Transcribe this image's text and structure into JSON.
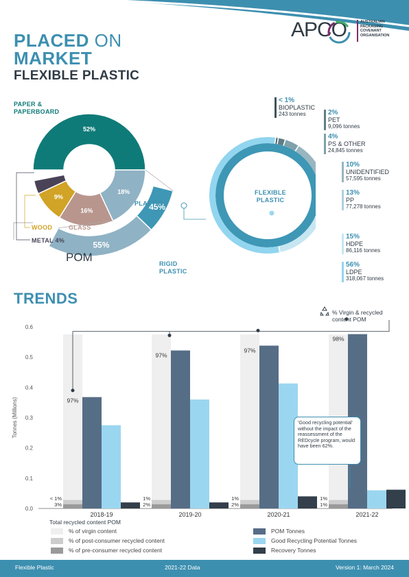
{
  "header": {
    "title_line1_bold": "PLACED",
    "title_line1_thin": "ON",
    "title_line2": "MARKET",
    "subtitle": "FLEXIBLE PLASTIC",
    "logo_text": "APCO",
    "logo_sub": [
      "AUSTRALIAN",
      "PACKAGING",
      "COVENANT",
      "ORGANISATION"
    ]
  },
  "pom": {
    "heading": "POM",
    "segments": [
      {
        "label": "PAPER & PAPERBOARD",
        "pct_label": "52%",
        "value": 52,
        "color": "#0f7b78"
      },
      {
        "label": "PLASTIC",
        "pct_label": "18%",
        "value": 18,
        "color": "#8fb2c4"
      },
      {
        "label": "GLASS",
        "pct_label": "16%",
        "value": 16,
        "color": "#b8968e"
      },
      {
        "label": "WOOD",
        "pct_label": "9%",
        "value": 9,
        "color": "#d1a326"
      },
      {
        "label": "METAL 4%",
        "pct_label": "",
        "value": 4,
        "color": "#4a4358"
      }
    ],
    "plastic_split": [
      {
        "label": "",
        "pct_label": "45%",
        "value": 45,
        "color": "#3e97b5"
      },
      {
        "label": "RIGID PLASTIC",
        "pct_label": "55%",
        "value": 55,
        "color": "#8fb2c4"
      }
    ]
  },
  "flexible": {
    "center_label": "FLEXIBLE PLASTIC",
    "types": [
      {
        "pct": "< 1%",
        "name": "BIOPLASTIC",
        "tonnes": "243 tonnes",
        "value": 0.7,
        "color": "#3f555c"
      },
      {
        "pct": "2%",
        "name": "PET",
        "tonnes": "9,096 tonnes",
        "value": 2,
        "color": "#5f7d86"
      },
      {
        "pct": "4%",
        "name": "PS & OTHER",
        "tonnes": "24,845 tonnes",
        "value": 4,
        "color": "#7fa1aa"
      },
      {
        "pct": "10%",
        "name": "UNIDENTIFIED",
        "tonnes": "57,595 tonnes",
        "value": 10,
        "color": "#97b6c0"
      },
      {
        "pct": "13%",
        "name": "PP",
        "tonnes": "77,278 tonnes",
        "value": 13,
        "color": "#add0dc"
      },
      {
        "pct": "15%",
        "name": "HDPE",
        "tonnes": "86,116 tonnes",
        "value": 15,
        "color": "#c6e6f1"
      },
      {
        "pct": "56%",
        "name": "LDPE",
        "tonnes": "318,067 tonnes",
        "value": 56,
        "color": "#92d5ef"
      }
    ]
  },
  "trends": {
    "heading": "TRENDS",
    "recycle_note": "% Virgin & recycled content POM",
    "callout": "'Good recycling potential' without the impact of the reassessment of the REDcycle program, would have been 62%.",
    "total_recycled_label": "Total recycled content POM"
  },
  "chart_data": {
    "type": "bar",
    "categories": [
      "2018-19",
      "2019-20",
      "2020-21",
      "2021-22"
    ],
    "ylabel": "Tonnes (Millions)",
    "ylim": [
      0,
      0.6
    ],
    "yticks": [
      0.0,
      0.1,
      0.2,
      0.3,
      0.4,
      0.5,
      0.6
    ],
    "series": [
      {
        "name": "POM Tonnes",
        "color": "#566d86",
        "values": [
          0.368,
          0.522,
          0.538,
          0.576
        ]
      },
      {
        "name": "Good Recycling Potential Tonnes",
        "color": "#9bd6f0",
        "values": [
          0.275,
          0.36,
          0.413,
          0.06
        ]
      },
      {
        "name": "Recovery Tonnes",
        "color": "#333f4a",
        "values": [
          0.02,
          0.02,
          0.04,
          0.062
        ]
      }
    ],
    "content_share": {
      "legend": [
        {
          "name": "% of virgin content",
          "color": "#efefef"
        },
        {
          "name": "% of post-consumer recycled content",
          "color": "#cdcdcd"
        },
        {
          "name": "% of pre-consumer recycled content",
          "color": "#9a9a9a"
        }
      ],
      "virgin_labels": [
        "97%",
        "97%",
        "97%",
        "98%"
      ],
      "recycled_labels": [
        [
          "< 1%",
          "3%"
        ],
        [
          "1%",
          "2%"
        ],
        [
          "1%",
          "2%"
        ],
        [
          "1%",
          "1%"
        ]
      ]
    }
  },
  "footer": {
    "left": "Flexible Plastic",
    "center": "2021-22 Data",
    "right": "Version 1: March 2024"
  }
}
